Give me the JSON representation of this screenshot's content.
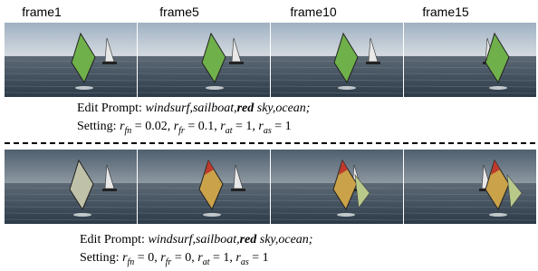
{
  "frames": [
    "frame1",
    "frame5",
    "frame10",
    "frame15"
  ],
  "rows": [
    {
      "prompt": {
        "label": "Edit Prompt:",
        "words": "windsurf,sailboat,",
        "bold": "red",
        "rest": " sky,ocean;"
      },
      "setting": {
        "label": "Setting:",
        "terms": [
          {
            "var": "r",
            "sub": "fn",
            "rest": " = 0.02,"
          },
          {
            "var": "r",
            "sub": "fr",
            "rest": " = 0.1,"
          },
          {
            "var": "r",
            "sub": "at",
            "rest": " = 1,"
          },
          {
            "var": "r",
            "sub": "as",
            "rest": " = 1"
          }
        ]
      }
    },
    {
      "prompt": {
        "label": "Edit Prompt:",
        "words": "windsurf,sailboat,",
        "bold": "red",
        "rest": " sky,ocean;"
      },
      "setting": {
        "label": "Setting:",
        "terms": [
          {
            "var": "r",
            "sub": "fn",
            "rest": " = 0,"
          },
          {
            "var": "r",
            "sub": "fr",
            "rest": " = 0,"
          },
          {
            "var": "r",
            "sub": "at",
            "rest": " = 1,"
          },
          {
            "var": "r",
            "sub": "as",
            "rest": " = 1"
          }
        ]
      }
    }
  ]
}
